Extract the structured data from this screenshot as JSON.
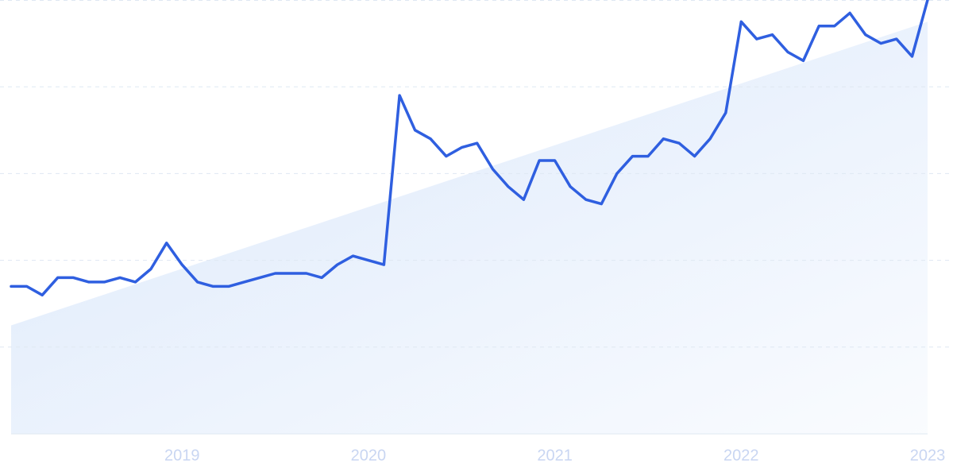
{
  "chart_data": {
    "type": "line",
    "x": [
      2018.083,
      2018.167,
      2018.25,
      2018.333,
      2018.417,
      2018.5,
      2018.583,
      2018.667,
      2018.75,
      2018.833,
      2018.917,
      2019,
      2019.083,
      2019.167,
      2019.25,
      2019.333,
      2019.417,
      2019.5,
      2019.583,
      2019.667,
      2019.75,
      2019.833,
      2019.917,
      2020,
      2020.083,
      2020.167,
      2020.25,
      2020.333,
      2020.417,
      2020.5,
      2020.583,
      2020.667,
      2020.75,
      2020.833,
      2020.917,
      2021,
      2021.083,
      2021.167,
      2021.25,
      2021.333,
      2021.417,
      2021.5,
      2021.583,
      2021.667,
      2021.75,
      2021.833,
      2021.917,
      2022,
      2022.083,
      2022.167,
      2022.25,
      2022.333,
      2022.417,
      2022.5,
      2022.583,
      2022.667,
      2022.75,
      2022.833,
      2022.917,
      2023
    ],
    "series": [
      {
        "color": "#2f5fe0",
        "values": [
          34,
          34,
          32,
          36,
          36,
          35,
          35,
          36,
          35,
          38,
          44,
          39,
          35,
          34,
          34,
          35,
          36,
          37,
          37,
          37,
          36,
          39,
          41,
          40,
          39,
          78,
          70,
          68,
          64,
          66,
          67,
          61,
          57,
          54,
          63,
          63,
          57,
          54,
          53,
          60,
          64,
          64,
          68,
          67,
          64,
          68,
          74,
          95,
          91,
          92,
          88,
          86,
          94,
          94,
          97,
          92,
          90,
          91,
          87,
          100
        ]
      }
    ],
    "trend_values": [
      25,
      95
    ],
    "trend_color": "#dbe8fb",
    "xlim": [
      2018.083,
      2023
    ],
    "xticks": [
      2019,
      2020,
      2021,
      2022,
      2023
    ],
    "ylim": [
      0,
      100
    ],
    "yticks": [
      0,
      20,
      40,
      60,
      80,
      100
    ],
    "grid": true
  }
}
